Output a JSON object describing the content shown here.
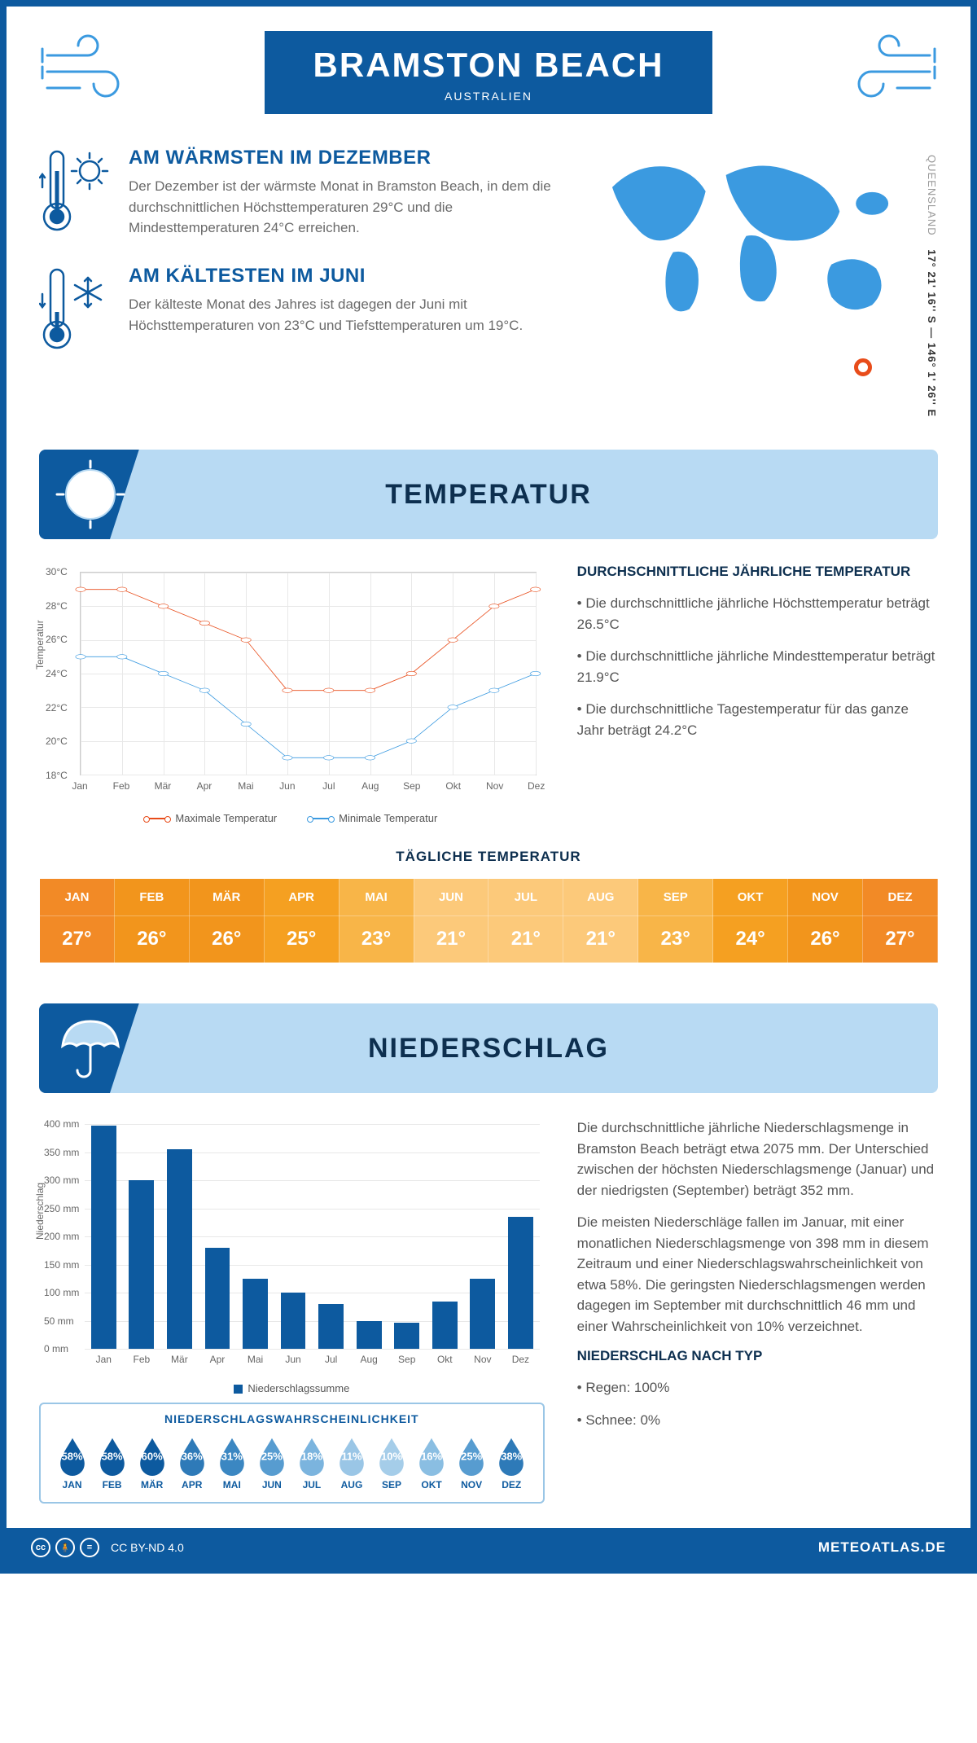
{
  "header": {
    "title": "BRAMSTON BEACH",
    "subtitle": "AUSTRALIEN"
  },
  "coords": {
    "region": "QUEENSLAND",
    "lat_lon": "17° 21' 16'' S — 146° 1' 26'' E"
  },
  "facts": {
    "warm": {
      "heading": "AM WÄRMSTEN IM DEZEMBER",
      "text": "Der Dezember ist der wärmste Monat in Bramston Beach, in dem die durchschnittlichen Höchsttemperaturen 29°C und die Mindesttemperaturen 24°C erreichen."
    },
    "cold": {
      "heading": "AM KÄLTESTEN IM JUNI",
      "text": "Der kälteste Monat des Jahres ist dagegen der Juni mit Höchsttemperaturen von 23°C und Tiefsttemperaturen um 19°C."
    }
  },
  "months_short": [
    "Jan",
    "Feb",
    "Mär",
    "Apr",
    "Mai",
    "Jun",
    "Jul",
    "Aug",
    "Sep",
    "Okt",
    "Nov",
    "Dez"
  ],
  "months_upper": [
    "JAN",
    "FEB",
    "MÄR",
    "APR",
    "MAI",
    "JUN",
    "JUL",
    "AUG",
    "SEP",
    "OKT",
    "NOV",
    "DEZ"
  ],
  "temperature": {
    "section_title": "TEMPERATUR",
    "chart": {
      "type": "line",
      "ylabel": "Temperatur",
      "ylim": [
        18,
        30
      ],
      "ytick_step": 2,
      "yticks": [
        "18°C",
        "20°C",
        "22°C",
        "24°C",
        "26°C",
        "28°C",
        "30°C"
      ],
      "series": [
        {
          "name": "Maximale Temperatur",
          "color": "#e84c1a",
          "values": [
            29,
            29,
            28,
            27,
            26,
            23,
            23,
            23,
            24,
            26,
            28,
            29
          ]
        },
        {
          "name": "Minimale Temperatur",
          "color": "#3b9ae0",
          "values": [
            25,
            25,
            24,
            23,
            21,
            19,
            19,
            19,
            20,
            22,
            23,
            24
          ]
        }
      ],
      "grid_color": "#e8e8e8",
      "background": "#ffffff",
      "marker_radius": 4,
      "line_width": 2
    },
    "side": {
      "heading": "DURCHSCHNITTLICHE JÄHRLICHE TEMPERATUR",
      "bullets": [
        "• Die durchschnittliche jährliche Höchsttemperatur beträgt 26.5°C",
        "• Die durchschnittliche jährliche Mindesttemperatur beträgt 21.9°C",
        "• Die durchschnittliche Tagestemperatur für das ganze Jahr beträgt 24.2°C"
      ]
    },
    "daily": {
      "title": "TÄGLICHE TEMPERATUR",
      "values": [
        "27°",
        "26°",
        "26°",
        "25°",
        "23°",
        "21°",
        "21°",
        "21°",
        "23°",
        "24°",
        "26°",
        "27°"
      ],
      "heat_gradient": [
        "#f28a26",
        "#f2951c",
        "#f2951c",
        "#f5a021",
        "#f8b548",
        "#fcc97a",
        "#fcc97a",
        "#fcc97a",
        "#f8b548",
        "#f5a021",
        "#f2951c",
        "#f28a26"
      ]
    }
  },
  "precip": {
    "section_title": "NIEDERSCHLAG",
    "chart": {
      "type": "bar",
      "ylabel": "Niederschlag",
      "ylim": [
        0,
        400
      ],
      "ytick_step": 50,
      "yticks": [
        "0 mm",
        "50 mm",
        "100 mm",
        "150 mm",
        "200 mm",
        "250 mm",
        "300 mm",
        "350 mm",
        "400 mm"
      ],
      "values": [
        398,
        300,
        355,
        180,
        125,
        100,
        80,
        50,
        46,
        85,
        125,
        235
      ],
      "bar_color": "#0d5a9f",
      "legend_label": "Niederschlagssumme",
      "bar_width_pct": 5.5
    },
    "side": {
      "para1": "Die durchschnittliche jährliche Niederschlagsmenge in Bramston Beach beträgt etwa 2075 mm. Der Unterschied zwischen der höchsten Niederschlagsmenge (Januar) und der niedrigsten (September) beträgt 352 mm.",
      "para2": "Die meisten Niederschläge fallen im Januar, mit einer monatlichen Niederschlagsmenge von 398 mm in diesem Zeitraum und einer Niederschlagswahrscheinlichkeit von etwa 58%. Die geringsten Niederschlagsmengen werden dagegen im September mit durchschnittlich 46 mm und einer Wahrscheinlichkeit von 10% verzeichnet.",
      "type_heading": "NIEDERSCHLAG NACH TYP",
      "type_bullets": [
        "• Regen: 100%",
        "• Schnee: 0%"
      ]
    },
    "prob": {
      "title": "NIEDERSCHLAGSWAHRSCHEINLICHKEIT",
      "values": [
        "58%",
        "58%",
        "60%",
        "36%",
        "31%",
        "25%",
        "18%",
        "11%",
        "10%",
        "16%",
        "25%",
        "38%"
      ],
      "colors": [
        "#0d5a9f",
        "#0d5a9f",
        "#0d5a9f",
        "#2e7ab8",
        "#3b87c2",
        "#579cd0",
        "#7bb4de",
        "#9ac6e6",
        "#a5cde9",
        "#8abee2",
        "#579cd0",
        "#2e7ab8"
      ]
    }
  },
  "footer": {
    "license": "CC BY-ND 4.0",
    "site": "METEOATLAS.DE"
  },
  "colors": {
    "brand": "#0d5a9f",
    "banner_bg": "#b8daf3",
    "accent_orange": "#e84c1a",
    "line_blue": "#3b9ae0"
  }
}
